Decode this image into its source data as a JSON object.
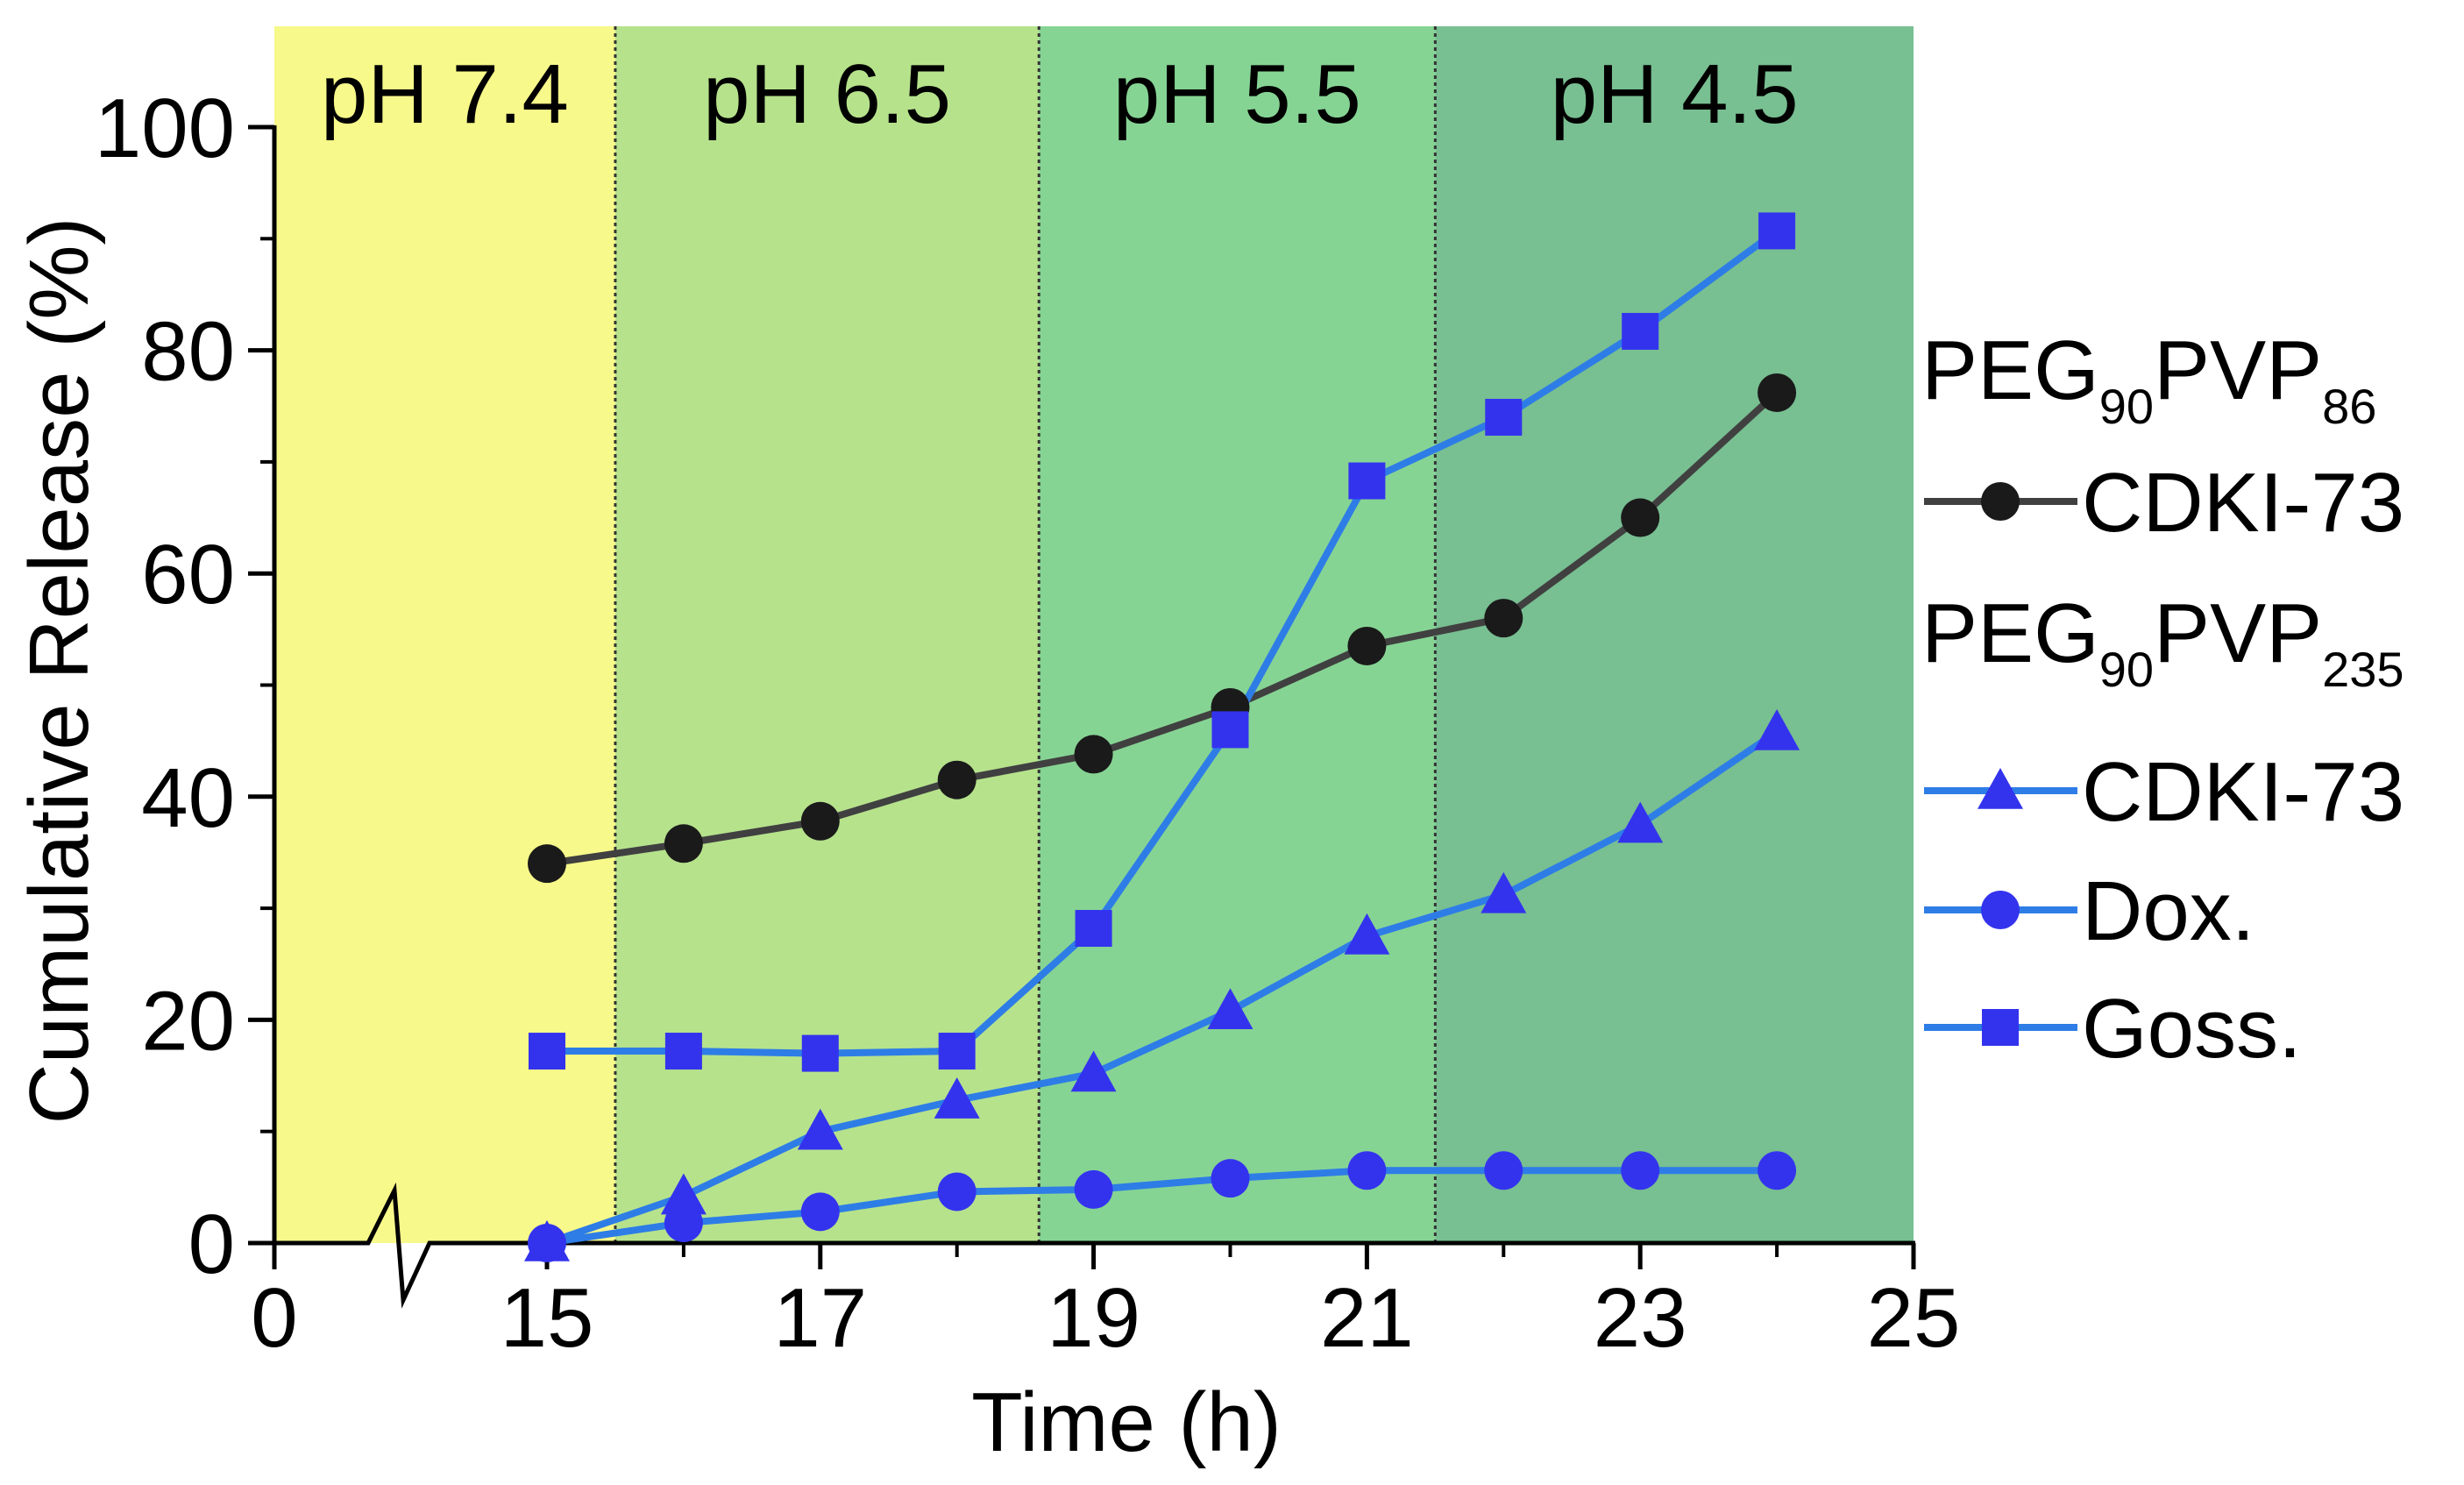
{
  "chart_data": {
    "type": "line",
    "title": "",
    "xlabel": "Time (h)",
    "ylabel": "Cumulative Release (%)",
    "xlim": [
      0,
      25
    ],
    "ylim": [
      0,
      100
    ],
    "axis_break": "between 0 and 15 on the x-axis",
    "xticks": [
      {
        "value": 0,
        "label": "0"
      },
      {
        "value": 15,
        "label": "15"
      },
      {
        "value": 17,
        "label": "17"
      },
      {
        "value": 19,
        "label": "19"
      },
      {
        "value": 21,
        "label": "21"
      },
      {
        "value": 23,
        "label": "23"
      },
      {
        "value": 25,
        "label": "25"
      }
    ],
    "yticks": [
      {
        "value": 0,
        "label": "0"
      },
      {
        "value": 20,
        "label": "20"
      },
      {
        "value": 40,
        "label": "40"
      },
      {
        "value": 60,
        "label": "60"
      },
      {
        "value": 80,
        "label": "80"
      },
      {
        "value": 100,
        "label": "100"
      }
    ],
    "regions": [
      {
        "label": "pH 7.4",
        "from": 0,
        "to": 15.5,
        "color": "#f7f98a"
      },
      {
        "label": "pH 6.5",
        "from": 15.5,
        "to": 18.6,
        "color": "#b6e28c"
      },
      {
        "label": "pH 5.5",
        "from": 18.6,
        "to": 21.5,
        "color": "#86d494"
      },
      {
        "label": "pH 4.5",
        "from": 21.5,
        "to": 25,
        "color": "#78bf92"
      }
    ],
    "legend_groups": [
      {
        "name": "PEG",
        "sub1": "90",
        "mid": "PVP",
        "sub2": "86"
      },
      {
        "name": "PEG",
        "sub1": "90",
        "mid": "PVP",
        "sub2": "235"
      }
    ],
    "series": [
      {
        "name": "CDKI-73",
        "group": 0,
        "marker": "circle",
        "color": "#1a1a1a",
        "line_color": "#404040",
        "x": [
          15,
          16,
          17,
          18,
          19,
          20,
          21,
          22,
          23,
          24
        ],
        "y": [
          34,
          35.8,
          37.8,
          41.5,
          43.8,
          48,
          53.5,
          56,
          65,
          76.2
        ]
      },
      {
        "name": "CDKI-73",
        "group": 1,
        "marker": "triangle",
        "color": "#3333ee",
        "line_color": "#2e7de6",
        "x": [
          15,
          16,
          17,
          18,
          19,
          20,
          21,
          22,
          23,
          24
        ],
        "y": [
          0,
          4.2,
          10,
          12.8,
          15.2,
          20.8,
          27.5,
          31.2,
          37.5,
          45.8
        ]
      },
      {
        "name": "Dox.",
        "group": 1,
        "marker": "circle",
        "color": "#3333ee",
        "line_color": "#2e7de6",
        "x": [
          15,
          16,
          17,
          18,
          19,
          20,
          21,
          22,
          23,
          24
        ],
        "y": [
          0,
          1.8,
          2.8,
          4.6,
          4.8,
          5.8,
          6.5,
          6.5,
          6.5,
          6.5
        ]
      },
      {
        "name": "Goss.",
        "group": 1,
        "marker": "square",
        "color": "#3333ee",
        "line_color": "#2e7de6",
        "x": [
          15,
          16,
          17,
          18,
          19,
          20,
          21,
          22,
          23,
          24
        ],
        "y": [
          17.2,
          17.2,
          17,
          17.2,
          28.2,
          46,
          68.3,
          74,
          81.7,
          90.7
        ]
      }
    ],
    "legend_position": "right"
  }
}
